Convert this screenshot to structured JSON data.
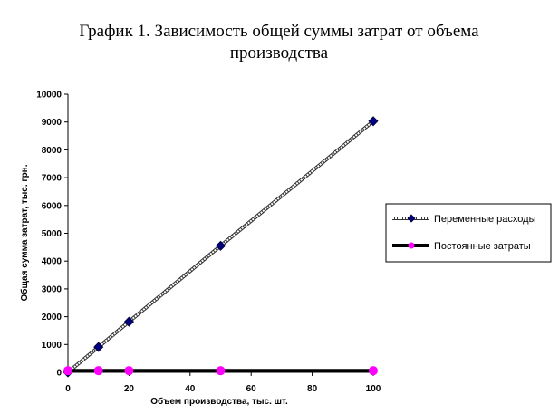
{
  "chart_data": {
    "type": "line",
    "title_line1": "График 1. Зависимость общей суммы затрат от объема",
    "title_line2": "производства",
    "xlabel": "Объем производства, тыс. шт.",
    "ylabel": "Общая сумма затрат, тыс. грн.",
    "xlim": [
      0,
      100
    ],
    "ylim": [
      0,
      10000
    ],
    "x_ticks": [
      "0",
      "20",
      "40",
      "60",
      "80",
      "100"
    ],
    "x_tick_values": [
      0,
      20,
      40,
      60,
      80,
      100
    ],
    "y_ticks": [
      "0",
      "1000",
      "2000",
      "3000",
      "4000",
      "5000",
      "6000",
      "7000",
      "8000",
      "9000",
      "10000"
    ],
    "y_tick_values": [
      0,
      1000,
      2000,
      3000,
      4000,
      5000,
      6000,
      7000,
      8000,
      9000,
      10000
    ],
    "grid": false,
    "legend_position": "right",
    "series": [
      {
        "name": "Переменные расходы",
        "x": [
          0,
          10,
          20,
          50,
          100
        ],
        "y": [
          0,
          910,
          1820,
          4550,
          9030
        ],
        "color": "#000080",
        "marker": "diamond",
        "line_color": "#808080"
      },
      {
        "name": "Постоянные затраты",
        "x": [
          0,
          10,
          20,
          50,
          100
        ],
        "y": [
          60,
          60,
          60,
          60,
          60
        ],
        "color": "#ff00ff",
        "marker": "circle",
        "line_color": "#000000"
      }
    ]
  }
}
